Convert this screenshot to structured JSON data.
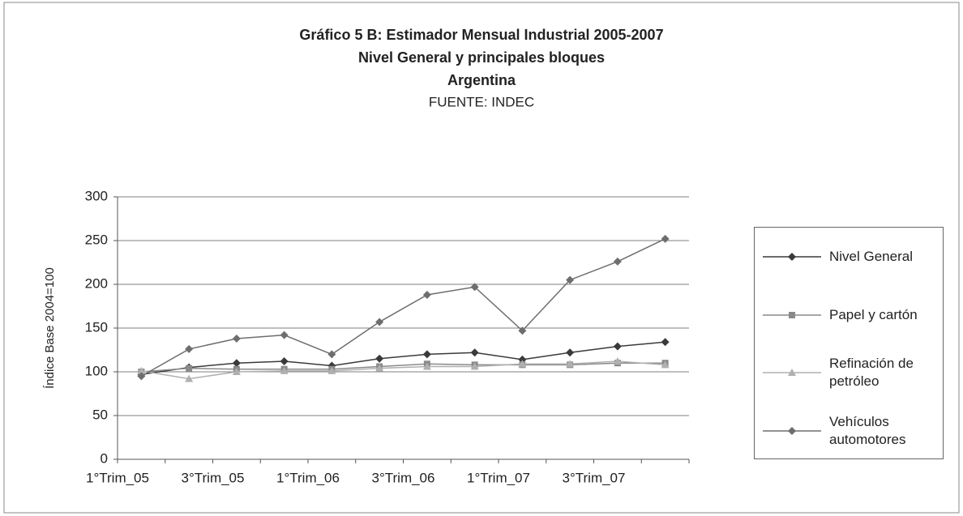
{
  "chart_data": {
    "type": "line",
    "title": "Gráfico 5 B: Estimador Mensual Industrial 2005-2007",
    "subtitle": [
      "Nivel General y principales bloques",
      "Argentina"
    ],
    "source": "FUENTE: INDEC",
    "y_label": "Índice Base 2004=100",
    "categories": [
      "1°Trim_05",
      null,
      "3°Trim_05",
      null,
      "1°Trim_06",
      null,
      "3°Trim_06",
      null,
      "1°Trim_07",
      null,
      "3°Trim_07",
      null
    ],
    "series": [
      {
        "name": "Nivel General",
        "color": "#3a3a3a",
        "marker": "diamond",
        "values": [
          97,
          105,
          110,
          112,
          107,
          115,
          120,
          122,
          114,
          122,
          129,
          134
        ]
      },
      {
        "name": "Papel y cartón",
        "color": "#8a8a8a",
        "marker": "square",
        "values": [
          100,
          104,
          103,
          103,
          103,
          106,
          109,
          108,
          108,
          108,
          110,
          110
        ]
      },
      {
        "name": "Refinación de petróleo",
        "color": "#b0b0b0",
        "marker": "triangle",
        "values": [
          101,
          92,
          100,
          101,
          101,
          104,
          106,
          106,
          109,
          109,
          112,
          108
        ]
      },
      {
        "name": "Vehículos automotores",
        "color": "#6e6e6e",
        "marker": "diamond",
        "values": [
          95,
          126,
          138,
          142,
          120,
          157,
          188,
          197,
          147,
          205,
          226,
          252
        ]
      }
    ],
    "ylim": [
      0,
      300
    ],
    "yticks": [
      0,
      50,
      100,
      150,
      200,
      250,
      300
    ],
    "grid": true,
    "legend": "right"
  }
}
